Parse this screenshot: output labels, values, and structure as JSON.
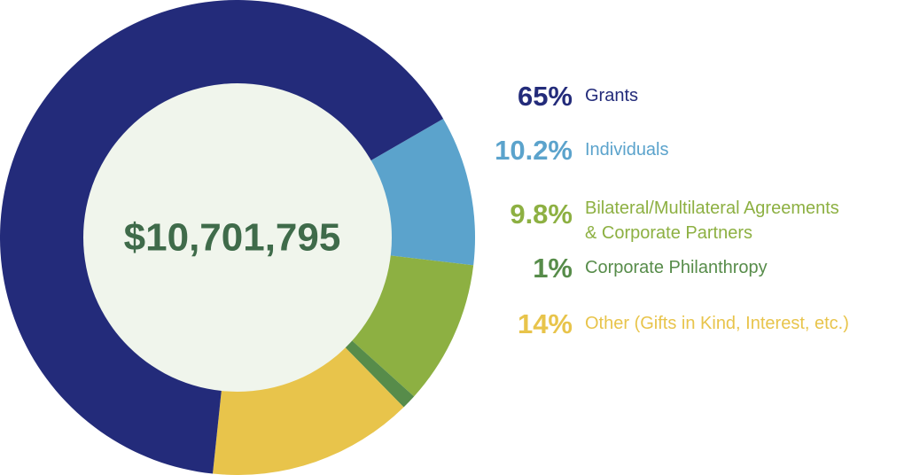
{
  "chart_data": {
    "type": "pie",
    "variant": "donut",
    "center_label": "$10,701,795",
    "slices": [
      {
        "label": "Grants",
        "display": "65%",
        "value": 65,
        "color": "#232b7a"
      },
      {
        "label": "Individuals",
        "display": "10.2%",
        "value": 10.2,
        "color": "#5ba3cc"
      },
      {
        "label": "Bilateral/Multilateral Agreements & Corporate Partners",
        "label_lines": [
          "Bilateral/Multilateral Agreements",
          "& Corporate Partners"
        ],
        "display": "9.8%",
        "value": 9.8,
        "color": "#8db042"
      },
      {
        "label": "Corporate Philanthropy",
        "display": "1%",
        "value": 1,
        "color": "#578c4a"
      },
      {
        "label": "Other (Gifts in Kind, Interest, etc.)",
        "display": "14%",
        "value": 14,
        "color": "#e8c44b"
      }
    ],
    "center_color": "#f0f5ec",
    "center_text_color": "#3f6b4a",
    "legend_position": "right"
  }
}
